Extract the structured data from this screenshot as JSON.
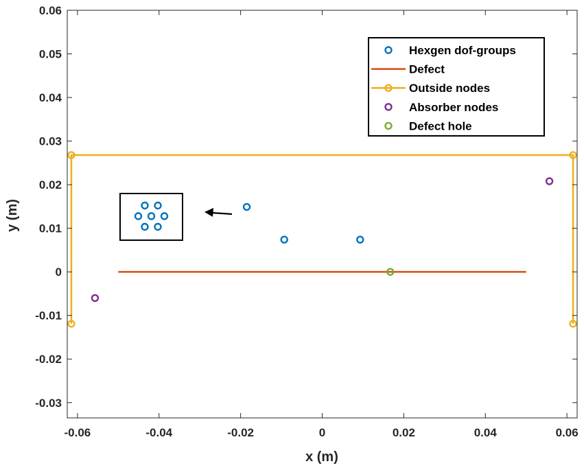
{
  "chart_data": {
    "type": "scatter",
    "xlabel": "x (m)",
    "ylabel": "y (m)",
    "xlim": [
      -0.0625,
      0.0625
    ],
    "ylim": [
      -0.0335,
      0.06
    ],
    "xticks": [
      "-0.06",
      "-0.04",
      "-0.02",
      "0",
      "0.02",
      "0.04",
      "0.06"
    ],
    "xtick_values": [
      -0.06,
      -0.04,
      -0.02,
      0,
      0.02,
      0.04,
      0.06
    ],
    "yticks": [
      "-0.03",
      "-0.02",
      "-0.01",
      "0",
      "0.01",
      "0.02",
      "0.03",
      "0.04",
      "0.05",
      "0.06"
    ],
    "ytick_values": [
      -0.03,
      -0.02,
      -0.01,
      0,
      0.01,
      0.02,
      0.03,
      0.04,
      0.05,
      0.06
    ],
    "grid": false,
    "legend_position": "top-right",
    "series": [
      {
        "name": "Hexgen dof-groups",
        "type": "scatter",
        "color": "#0072BD",
        "x": [
          -0.0185,
          -0.0093,
          0.0093
        ],
        "y": [
          0.0149,
          0.0074,
          0.0074
        ]
      },
      {
        "name": "Defect",
        "type": "line",
        "color": "#D95319",
        "x": [
          -0.05,
          0.05
        ],
        "y": [
          0,
          0
        ]
      },
      {
        "name": "Outside nodes",
        "type": "line-markers",
        "color": "#EDB120",
        "x": [
          -0.0615,
          -0.0615,
          0.0615,
          0.0615
        ],
        "y": [
          -0.0119,
          0.0268,
          0.0268,
          -0.0119
        ]
      },
      {
        "name": "Absorber nodes",
        "type": "scatter",
        "color": "#7E2F8E",
        "x": [
          -0.0557,
          0.0557
        ],
        "y": [
          -0.006,
          0.0208
        ]
      },
      {
        "name": "Defect hole",
        "type": "scatter",
        "color": "#77AC30",
        "x": [
          0.0167
        ],
        "y": [
          0
        ]
      }
    ],
    "inset": {
      "description": "hexagonal cluster of dof-group markers",
      "color": "#0072BD",
      "points": [
        [
          -1,
          1
        ],
        [
          1,
          1
        ],
        [
          -2,
          0
        ],
        [
          0,
          0
        ],
        [
          2,
          0
        ],
        [
          -1,
          -1
        ],
        [
          1,
          -1
        ]
      ]
    }
  }
}
